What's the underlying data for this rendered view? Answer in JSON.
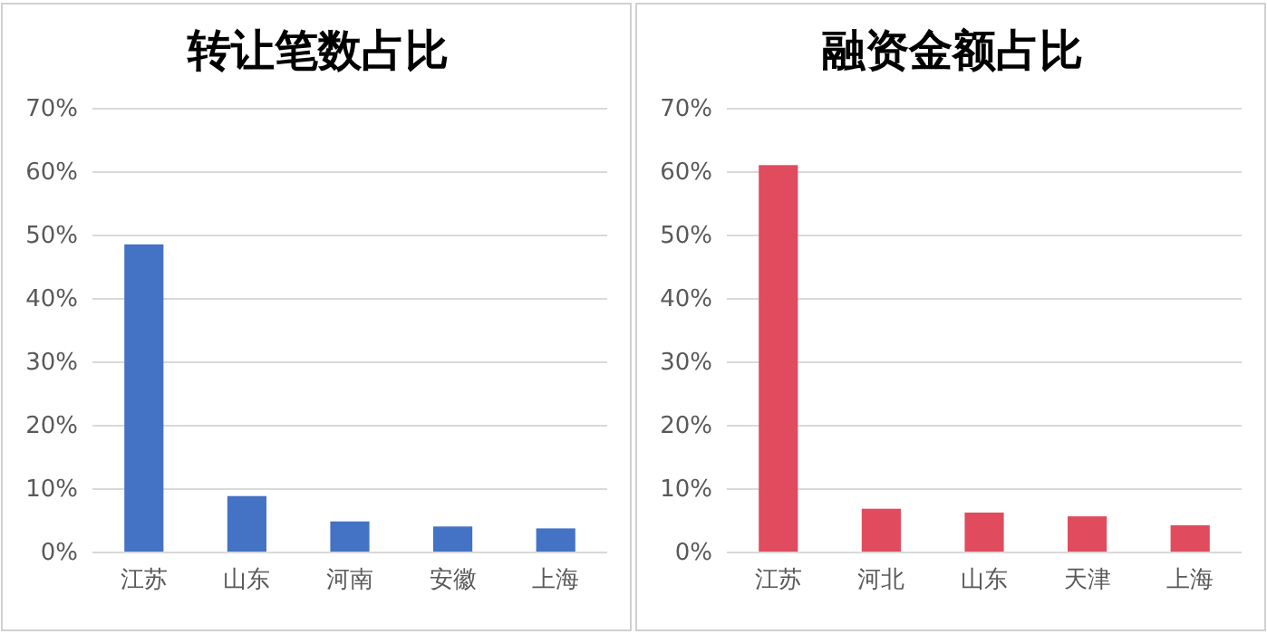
{
  "chart_data": [
    {
      "type": "bar",
      "title": "转让笔数占比",
      "categories": [
        "江苏",
        "山东",
        "河南",
        "安徽",
        "上海"
      ],
      "values": [
        48.6,
        8.9,
        4.9,
        4.1,
        3.8
      ],
      "color": "#4472c4",
      "ylim": [
        0,
        70
      ],
      "yticks": [
        {
          "value": 0,
          "label": "0%"
        },
        {
          "value": 10,
          "label": "10%"
        },
        {
          "value": 20,
          "label": "20%"
        },
        {
          "value": 30,
          "label": "30%"
        },
        {
          "value": 40,
          "label": "40%"
        },
        {
          "value": 50,
          "label": "50%"
        },
        {
          "value": 60,
          "label": "60%"
        },
        {
          "value": 70,
          "label": "70%"
        }
      ],
      "grid": "y"
    },
    {
      "type": "bar",
      "title": "融资金额占比",
      "categories": [
        "江苏",
        "河北",
        "山东",
        "天津",
        "上海"
      ],
      "values": [
        61.1,
        6.9,
        6.3,
        5.7,
        4.3
      ],
      "color": "#e04b5e",
      "ylim": [
        0,
        70
      ],
      "yticks": [
        {
          "value": 0,
          "label": "0%"
        },
        {
          "value": 10,
          "label": "10%"
        },
        {
          "value": 20,
          "label": "20%"
        },
        {
          "value": 30,
          "label": "30%"
        },
        {
          "value": 40,
          "label": "40%"
        },
        {
          "value": 50,
          "label": "50%"
        },
        {
          "value": 60,
          "label": "60%"
        },
        {
          "value": 70,
          "label": "70%"
        }
      ],
      "grid": "y"
    }
  ]
}
